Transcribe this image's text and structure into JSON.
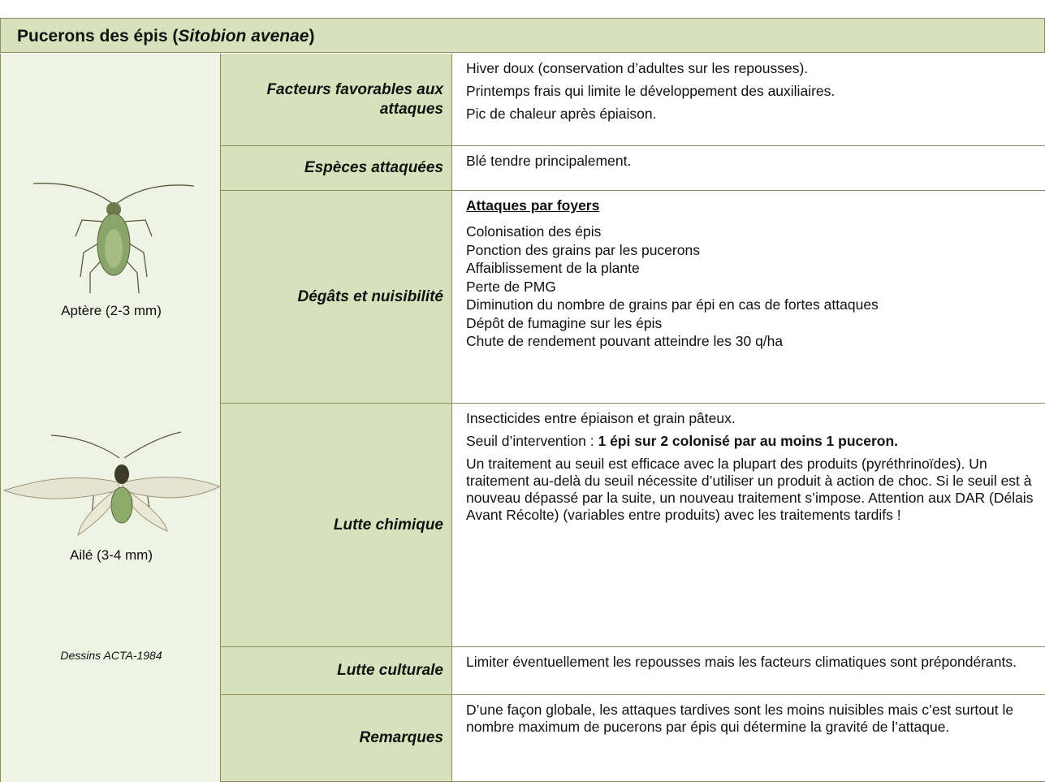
{
  "header": {
    "title_prefix": "Pucerons des épis (",
    "title_species": "Sitobion avenae",
    "title_suffix": ")"
  },
  "illustrations": [
    {
      "caption": "Aptère (2-3 mm)"
    },
    {
      "caption": "Ailé (3-4 mm)"
    }
  ],
  "credit": "Dessins ACTA-1984",
  "rows": [
    {
      "label": "Facteurs favorables aux attaques",
      "paragraphs": [
        {
          "text": "Hiver doux (conservation d’adultes sur les repousses)."
        },
        {
          "text": "Printemps frais qui limite le développement des auxiliaires."
        },
        {
          "text": "Pic de chaleur après épiaison."
        }
      ]
    },
    {
      "label": "Espèces attaquées",
      "paragraphs": [
        {
          "text": "Blé tendre principalement."
        }
      ]
    },
    {
      "label": "Dégâts et nuisibilité",
      "heading": "Attaques par foyers",
      "lines": [
        "Colonisation des épis",
        "Ponction des grains par les pucerons",
        "Affaiblissement de la plante",
        "Perte de PMG",
        "Diminution du nombre de grains par épi en cas de fortes attaques",
        "Dépôt de fumagine sur les épis",
        "Chute de rendement pouvant atteindre les 30 q/ha"
      ]
    },
    {
      "label": "Lutte chimique",
      "paragraphs": [
        {
          "text": "Insecticides entre épiaison et grain pâteux."
        },
        {
          "text": "Seuil d’intervention :",
          "bold": "1 épi sur 2 colonisé par au moins 1 puceron."
        },
        {
          "text": "Un traitement au seuil est efficace avec la plupart des produits (pyréthrinoïdes). Un traitement au-delà du seuil nécessite d’utiliser un produit à action de choc. Si le seuil est à nouveau dépassé par la suite, un nouveau traitement s’impose. Attention aux DAR (Délais Avant Récolte) (variables entre produits) avec les traitements tardifs !"
        }
      ]
    },
    {
      "label": "Lutte culturale",
      "paragraphs": [
        {
          "text": "Limiter éventuellement les repousses mais les facteurs climatiques sont prépondérants."
        }
      ]
    },
    {
      "label": "Remarques",
      "paragraphs": [
        {
          "text": "D’une façon globale, les attaques tardives sont les moins nuisibles mais c’est surtout le nombre maximum de pucerons par épis qui détermine la gravité de l’attaque."
        }
      ]
    }
  ]
}
